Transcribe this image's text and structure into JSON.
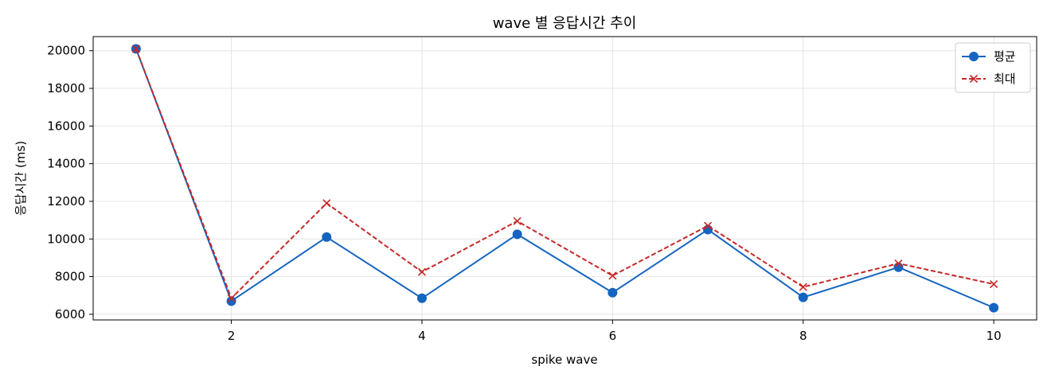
{
  "chart_data": {
    "type": "line",
    "title": "wave 별 응답시간 추이",
    "xlabel": "spike wave",
    "ylabel": "응답시간 (ms)",
    "x": [
      1,
      2,
      3,
      4,
      5,
      6,
      7,
      8,
      9,
      10
    ],
    "xlim": [
      0.55,
      10.45
    ],
    "ylim": [
      5700,
      20750
    ],
    "xticks": [
      2,
      4,
      6,
      8,
      10
    ],
    "yticks": [
      6000,
      8000,
      10000,
      12000,
      14000,
      16000,
      18000,
      20000
    ],
    "grid": true,
    "legend_position": "top-right",
    "series": [
      {
        "name": "평균",
        "color": "#1565c0",
        "line_style": "solid",
        "marker": "circle",
        "values": [
          20100,
          6700,
          10100,
          6850,
          10250,
          7150,
          10500,
          6900,
          8500,
          6350
        ]
      },
      {
        "name": "최대",
        "color": "#c62828",
        "line_style": "dashed",
        "marker": "x",
        "values": [
          20100,
          6850,
          11900,
          8250,
          10950,
          8050,
          10700,
          7450,
          8700,
          7600
        ]
      }
    ]
  }
}
